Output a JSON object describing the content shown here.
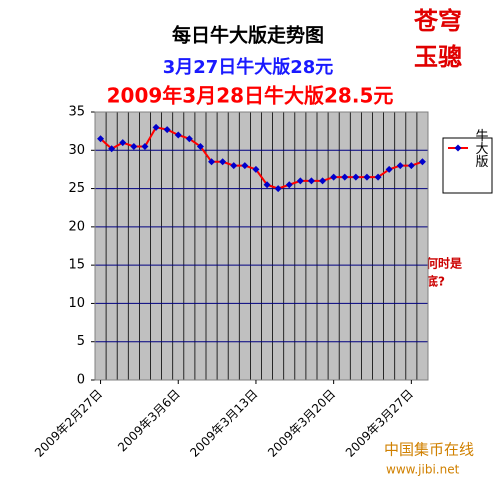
{
  "chart_data": {
    "type": "line",
    "title": "每日牛大版走势图",
    "subtitle": "3月27日牛大版28元",
    "subtitle2": "2009年3月28日牛大版28.5元",
    "signature": [
      "苍穹",
      "玉骢"
    ],
    "annotation": [
      "何时是",
      "底?"
    ],
    "watermark": [
      "中国集币在线",
      "www.jibi.net"
    ],
    "categories": [
      "2009年2月27日",
      null,
      null,
      null,
      null,
      null,
      null,
      "2009年3月6日",
      null,
      null,
      null,
      null,
      null,
      null,
      "2009年3月13日",
      null,
      null,
      null,
      null,
      null,
      null,
      "2009年3月20日",
      null,
      null,
      null,
      null,
      null,
      null,
      "2009年3月27日",
      null
    ],
    "series": [
      {
        "name": "牛大版",
        "color": "#ff0000",
        "marker_color": "#0000cc",
        "values": [
          31.5,
          30.2,
          31,
          30.5,
          30.5,
          33,
          32.7,
          32,
          31.5,
          30.5,
          28.5,
          28.5,
          28,
          28,
          27.5,
          25.5,
          25,
          25.5,
          26,
          26,
          26,
          26.5,
          26.5,
          26.5,
          26.5,
          26.5,
          27.5,
          28,
          28,
          28.5
        ]
      }
    ],
    "ylim": [
      0,
      35
    ],
    "yticks": [
      0,
      5,
      10,
      15,
      20,
      25,
      30,
      35
    ],
    "grid": true,
    "legend": "right"
  }
}
